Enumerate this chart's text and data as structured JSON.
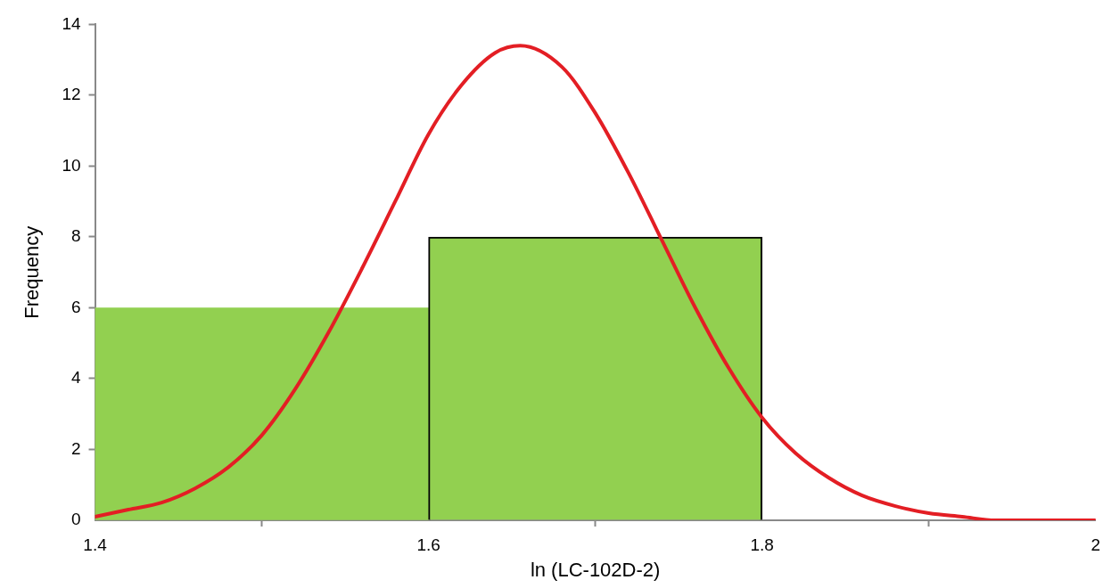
{
  "chart_data": {
    "type": "histogram",
    "xlabel": "ln (LC-102D-2)",
    "ylabel": "Frequency",
    "series": [
      {
        "color": "#92d050",
        "bins": [
          1.4,
          1.6,
          1.8
        ],
        "values": [
          6,
          8
        ]
      },
      {
        "type": "line",
        "color": "#e31e24",
        "x": [
          1.4,
          1.42,
          1.44,
          1.46,
          1.48,
          1.5,
          1.52,
          1.54,
          1.56,
          1.58,
          1.6,
          1.62,
          1.64,
          1.655,
          1.68,
          1.7,
          1.72,
          1.74,
          1.76,
          1.78,
          1.8,
          1.82,
          1.84,
          1.86,
          1.88,
          1.9,
          1.92,
          1.94,
          1.96,
          1.98,
          2
        ],
        "values": [
          0.1,
          0.3,
          0.5,
          0.9,
          1.5,
          2.4,
          3.7,
          5.3,
          7.1,
          9.0,
          10.9,
          12.3,
          13.2,
          13.4,
          12.8,
          11.5,
          9.8,
          7.9,
          6.0,
          4.3,
          2.9,
          1.9,
          1.2,
          0.7,
          0.4,
          0.2,
          0.1,
          0.0,
          0.0,
          0.0,
          0.0
        ]
      }
    ],
    "xlim": [
      1.4,
      2
    ],
    "xticks": [
      1.4,
      1.6,
      1.8,
      2
    ],
    "ylim": [
      0,
      14
    ],
    "yticks": [
      0,
      2,
      4,
      6,
      8,
      10,
      12,
      14
    ],
    "grid": false
  }
}
